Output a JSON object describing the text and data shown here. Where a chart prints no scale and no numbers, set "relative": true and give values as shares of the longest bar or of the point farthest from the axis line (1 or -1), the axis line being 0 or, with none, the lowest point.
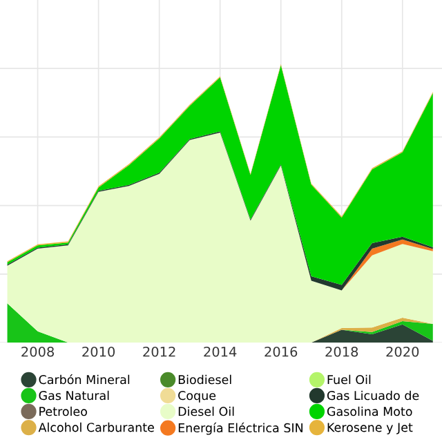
{
  "chart_data": {
    "type": "area",
    "stacked": true,
    "relative": true,
    "grid": true,
    "legend": "bottom",
    "x": [
      2007,
      2008,
      2009,
      2010,
      2011,
      2012,
      2013,
      2014,
      2015,
      2016,
      2017,
      2018,
      2019,
      2020,
      2021
    ],
    "xlim": [
      2006.76,
      2021.3
    ],
    "xticks": [
      2008,
      2010,
      2012,
      2014,
      2016,
      2018,
      2020
    ],
    "series": [
      {
        "name": "Carbón Mineral",
        "color": "#2b4436",
        "values": [
          null,
          null,
          null,
          null,
          null,
          null,
          null,
          null,
          null,
          null,
          0,
          0.046,
          0.03,
          0.065,
          0.006
        ]
      },
      {
        "name": "Gas Natural",
        "color": "#18c418",
        "values": [
          0.141,
          0.04,
          0,
          null,
          null,
          null,
          null,
          null,
          null,
          null,
          null,
          0,
          0.008,
          0.012,
          0.061
        ]
      },
      {
        "name": "Petroleo",
        "color": "#7a6a5a",
        "values": [
          null,
          null,
          null,
          null,
          null,
          null,
          null,
          null,
          null,
          null,
          null,
          null,
          null,
          null,
          null
        ]
      },
      {
        "name": "Alcohol Carburante",
        "color": "#dcb048",
        "values": [
          null,
          null,
          null,
          null,
          null,
          null,
          null,
          null,
          null,
          null,
          0,
          0.006,
          0.016,
          0.012,
          0
        ]
      },
      {
        "name": "Biodiesel",
        "color": "#4a8a2a",
        "values": [
          null,
          null,
          null,
          null,
          null,
          null,
          null,
          null,
          null,
          null,
          null,
          null,
          null,
          null,
          null
        ]
      },
      {
        "name": "Coque",
        "color": "#f0dc96",
        "values": [
          null,
          null,
          null,
          null,
          null,
          null,
          null,
          null,
          null,
          null,
          null,
          null,
          null,
          null,
          null
        ]
      },
      {
        "name": "Diesel Oil",
        "color": "#e8fcc8",
        "values": [
          0.135,
          0.297,
          0.349,
          0.541,
          0.562,
          0.606,
          0.727,
          0.754,
          0.438,
          0.636,
          0.222,
          0.135,
          0.259,
          0.265,
          0.261
        ]
      },
      {
        "name": "Energía Eléctrica SIN",
        "color": "#f47920",
        "values": [
          null,
          null,
          null,
          null,
          null,
          null,
          null,
          null,
          null,
          null,
          null,
          0,
          0.024,
          0.016,
          0.008
        ]
      },
      {
        "name": "Fuel Oil",
        "color": "#b4f46a",
        "values": [
          null,
          null,
          null,
          null,
          null,
          null,
          null,
          null,
          null,
          null,
          null,
          null,
          null,
          null,
          null
        ]
      },
      {
        "name": "Gas Licuado de",
        "color": "#22392e",
        "values": [
          0.004,
          0.004,
          0.004,
          0.004,
          0.004,
          0.004,
          0.004,
          0.004,
          0.004,
          0.004,
          0.016,
          0.02,
          0.02,
          0.01,
          0.006
        ]
      },
      {
        "name": "Gasolina Moto",
        "color": "#00d400",
        "values": [
          0.008,
          0.008,
          0.006,
          0.012,
          0.071,
          0.123,
          0.119,
          0.194,
          0.16,
          0.356,
          0.329,
          0.242,
          0.265,
          0.303,
          0.554
        ]
      },
      {
        "name": "Kerosene y Jet",
        "color": "#e6b43c",
        "values": [
          0.004,
          0.004,
          0.004,
          0.004,
          0.004,
          0.004,
          0.004,
          0.004,
          0.004,
          0.004,
          0.004,
          0.004,
          0.004,
          0.004,
          0.004
        ]
      }
    ]
  }
}
